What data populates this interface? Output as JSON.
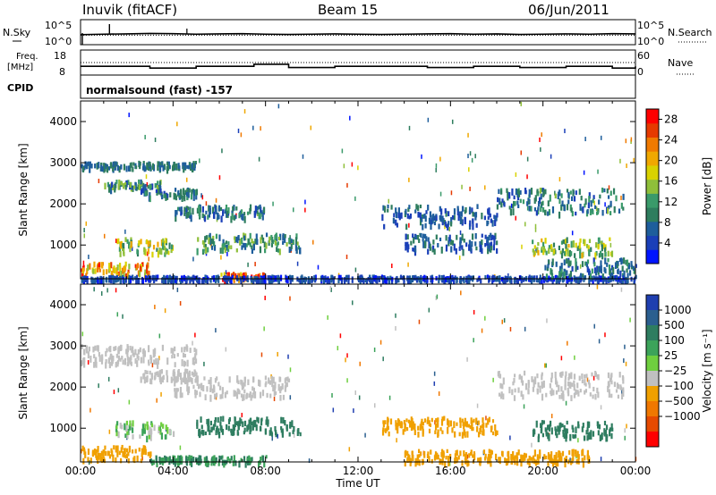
{
  "header": {
    "title": "Inuvik (fitACF)",
    "beam": "Beam 15",
    "date": "06/Jun/2011"
  },
  "colors": {
    "power_scale": [
      "#0014ff",
      "#1a3fb8",
      "#1e5e9c",
      "#2e7d5e",
      "#3a9a6a",
      "#8fbf3a",
      "#d9d200",
      "#f0a800",
      "#f07a00",
      "#e63a00",
      "#ff0000"
    ],
    "velocity_scale": [
      "#1f3fb0",
      "#2b5f8f",
      "#2e7d60",
      "#3ca35a",
      "#6fcf3f",
      "#c0c0c0",
      "#f0a000",
      "#f07800",
      "#e64a00",
      "#ff0000"
    ]
  },
  "chart_data": [
    {
      "type": "line",
      "panel": "noise",
      "left_label": "N.Sky",
      "right_label": "N.Search",
      "left_ticks": [
        "10^5",
        "10^0"
      ],
      "right_ticks": [
        "10^5",
        "10^0"
      ],
      "series": [
        {
          "name": "N.Sky",
          "style": "solid",
          "x": [
            "00:00",
            "01:00",
            "02:00",
            "03:00",
            "04:00",
            "05:00",
            "06:00",
            "07:00",
            "08:00",
            "09:00",
            "10:00",
            "11:00",
            "12:00",
            "13:00",
            "14:00",
            "15:00",
            "16:00",
            "17:00",
            "18:00",
            "19:00",
            "20:00",
            "21:00",
            "22:00",
            "23:00",
            "24:00"
          ],
          "values": [
            0.4,
            0.42,
            0.43,
            0.45,
            0.44,
            0.42,
            0.43,
            0.44,
            0.42,
            0.41,
            0.42,
            0.43,
            0.42,
            0.41,
            0.42,
            0.43,
            0.44,
            0.42,
            0.43,
            0.41,
            0.42,
            0.43,
            0.42,
            0.44,
            0.43
          ]
        },
        {
          "name": "N.Search",
          "style": "dotted",
          "x": [
            "00:00",
            "24:00"
          ],
          "values": [
            0.38,
            0.38
          ]
        }
      ]
    },
    {
      "type": "line",
      "panel": "freq-nave",
      "left_label": "Freq.",
      "left_unit": "[MHz]",
      "right_label": "Nave",
      "left_ticks": [
        "18",
        "8"
      ],
      "right_ticks": [
        "60",
        "0"
      ],
      "series": [
        {
          "name": "Freq.",
          "style": "solid",
          "x": [
            "00:00",
            "02:00",
            "03:00",
            "05:00",
            "06:30",
            "07:30",
            "09:00",
            "11:00",
            "13:30",
            "15:00",
            "17:00",
            "19:00",
            "21:00",
            "23:00",
            "24:00"
          ],
          "values": [
            11.5,
            11.5,
            10.8,
            11.5,
            11.5,
            12.3,
            11.0,
            11.5,
            11.5,
            11.0,
            11.5,
            11.0,
            11.5,
            10.8,
            11.5
          ]
        },
        {
          "name": "Nave",
          "style": "dotted",
          "x": [
            "00:00",
            "24:00"
          ],
          "values": [
            30,
            30
          ]
        }
      ]
    },
    {
      "type": "table",
      "panel": "cpid",
      "label": "CPID",
      "text": "normalsound (fast) -157"
    },
    {
      "type": "heatmap",
      "panel": "power",
      "ylabel": "Slant Range [km]",
      "ylim": [
        180,
        4500
      ],
      "yticks": [
        1000,
        2000,
        3000,
        4000
      ],
      "xlim": [
        "00:00",
        "00:00"
      ],
      "colorbar_label": "Power [dB]",
      "colorbar_ticks": [
        4,
        8,
        12,
        16,
        20,
        24,
        28
      ],
      "colorbar_range": [
        0,
        30
      ],
      "bands": [
        {
          "h0": 0,
          "h1": 5,
          "r0": 2900,
          "r1": 3050,
          "v0": 6,
          "v1": 10
        },
        {
          "h0": 1,
          "h1": 3.5,
          "r0": 2400,
          "r1": 2600,
          "v0": 5,
          "v1": 16
        },
        {
          "h0": 2.5,
          "h1": 5,
          "r0": 2200,
          "r1": 2400,
          "v0": 4,
          "v1": 12
        },
        {
          "h0": 4,
          "h1": 8,
          "r0": 1700,
          "r1": 2000,
          "v0": 4,
          "v1": 12
        },
        {
          "h0": 5,
          "h1": 9.5,
          "r0": 900,
          "r1": 1300,
          "v0": 6,
          "v1": 16
        },
        {
          "h0": 1.5,
          "h1": 4,
          "r0": 800,
          "r1": 1200,
          "v0": 8,
          "v1": 20
        },
        {
          "h0": 0,
          "h1": 3,
          "r0": 300,
          "r1": 600,
          "v0": 14,
          "v1": 28
        },
        {
          "h0": 6,
          "h1": 8,
          "r0": 200,
          "r1": 350,
          "v0": 18,
          "v1": 30
        },
        {
          "h0": 0,
          "h1": 24,
          "r0": 180,
          "r1": 280,
          "v0": 2,
          "v1": 8
        },
        {
          "h0": 14,
          "h1": 18,
          "r0": 900,
          "r1": 1300,
          "v0": 3,
          "v1": 10
        },
        {
          "h0": 18,
          "h1": 23.5,
          "r0": 1800,
          "r1": 2400,
          "v0": 4,
          "v1": 14
        },
        {
          "h0": 19.5,
          "h1": 23,
          "r0": 800,
          "r1": 1200,
          "v0": 8,
          "v1": 20
        },
        {
          "h0": 13,
          "h1": 18,
          "r0": 1500,
          "r1": 2000,
          "v0": 3,
          "v1": 9
        },
        {
          "h0": 20,
          "h1": 24,
          "r0": 300,
          "r1": 700,
          "v0": 4,
          "v1": 12
        }
      ]
    },
    {
      "type": "heatmap",
      "panel": "velocity",
      "ylabel": "Slant Range [km]",
      "ylim": [
        180,
        4500
      ],
      "yticks": [
        1000,
        2000,
        3000,
        4000
      ],
      "xlabel": "Time UT",
      "xticks": [
        "00:00",
        "04:00",
        "08:00",
        "12:00",
        "16:00",
        "20:00",
        "00:00"
      ],
      "colorbar_label": "Velocity [m s⁻¹]",
      "colorbar_ticks": [
        "1000",
        "500",
        "100",
        "25",
        "−25",
        "−100",
        "−500",
        "−1000"
      ],
      "bands": [
        {
          "h0": 0,
          "h1": 5,
          "r0": 2600,
          "r1": 3050,
          "v0": 5,
          "v1": 5
        },
        {
          "h0": 2.5,
          "h1": 5,
          "r0": 2200,
          "r1": 2450,
          "v0": 5,
          "v1": 5
        },
        {
          "h0": 4,
          "h1": 9,
          "r0": 1800,
          "r1": 2300,
          "v0": 5,
          "v1": 5
        },
        {
          "h0": 1.5,
          "h1": 4,
          "r0": 800,
          "r1": 1200,
          "v0": 3,
          "v1": 6
        },
        {
          "h0": 5,
          "h1": 9.5,
          "r0": 900,
          "r1": 1300,
          "v0": 2,
          "v1": 3
        },
        {
          "h0": 0,
          "h1": 3,
          "r0": 250,
          "r1": 600,
          "v0": 6,
          "v1": 7
        },
        {
          "h0": 3,
          "h1": 8,
          "r0": 200,
          "r1": 350,
          "v0": 2,
          "v1": 4
        },
        {
          "h0": 13,
          "h1": 18,
          "r0": 900,
          "r1": 1300,
          "v0": 6,
          "v1": 7
        },
        {
          "h0": 18,
          "h1": 23.5,
          "r0": 1800,
          "r1": 2400,
          "v0": 5,
          "v1": 5
        },
        {
          "h0": 19.5,
          "h1": 23,
          "r0": 800,
          "r1": 1200,
          "v0": 2,
          "v1": 3
        },
        {
          "h0": 14,
          "h1": 22,
          "r0": 200,
          "r1": 500,
          "v0": 6,
          "v1": 7
        }
      ]
    }
  ]
}
